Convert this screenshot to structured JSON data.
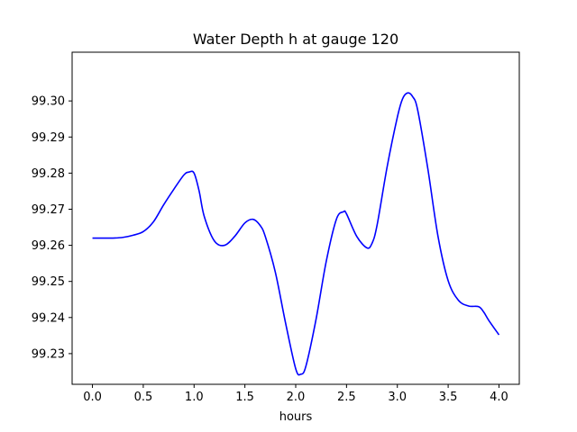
{
  "chart_data": {
    "type": "line",
    "title": "Water Depth h at gauge 120",
    "xlabel": "hours",
    "ylabel": "",
    "xlim": [
      -0.2,
      4.2
    ],
    "ylim": [
      99.2215,
      99.3135
    ],
    "xticks": [
      0.0,
      0.5,
      1.0,
      1.5,
      2.0,
      2.5,
      3.0,
      3.5,
      4.0
    ],
    "xtick_labels": [
      "0.0",
      "0.5",
      "1.0",
      "1.5",
      "2.0",
      "2.5",
      "3.0",
      "3.5",
      "4.0"
    ],
    "yticks": [
      99.23,
      99.24,
      99.25,
      99.26,
      99.27,
      99.28,
      99.29,
      99.3
    ],
    "ytick_labels": [
      "99.23",
      "99.24",
      "99.25",
      "99.26",
      "99.27",
      "99.28",
      "99.29",
      "99.30"
    ],
    "grid": false,
    "legend": "none",
    "series": [
      {
        "color": "#0000ff",
        "x": [
          0.0,
          0.1,
          0.2,
          0.3,
          0.4,
          0.5,
          0.6,
          0.7,
          0.8,
          0.9,
          0.95,
          1.0,
          1.05,
          1.1,
          1.2,
          1.3,
          1.4,
          1.5,
          1.58,
          1.65,
          1.7,
          1.8,
          1.9,
          2.0,
          2.05,
          2.1,
          2.2,
          2.3,
          2.4,
          2.47,
          2.5,
          2.6,
          2.7,
          2.75,
          2.8,
          2.9,
          3.0,
          3.05,
          3.1,
          3.15,
          3.2,
          3.3,
          3.4,
          3.5,
          3.6,
          3.7,
          3.8,
          3.85,
          3.9,
          4.0
        ],
        "y": [
          99.262,
          99.262,
          99.262,
          99.2622,
          99.2628,
          99.2638,
          99.2665,
          99.2712,
          99.2755,
          99.2795,
          99.2803,
          99.28,
          99.275,
          99.268,
          99.2612,
          99.26,
          99.2625,
          99.2662,
          99.2672,
          99.2655,
          99.2625,
          99.2525,
          99.2385,
          99.2258,
          99.2243,
          99.2265,
          99.2395,
          99.2555,
          99.2672,
          99.2693,
          99.2687,
          99.2625,
          99.2593,
          99.2605,
          99.2655,
          99.2818,
          99.2955,
          99.3005,
          99.3022,
          99.3012,
          99.2975,
          99.2812,
          99.2625,
          99.2502,
          99.2448,
          99.2432,
          99.243,
          99.2415,
          99.2392,
          99.2352
        ]
      }
    ]
  }
}
